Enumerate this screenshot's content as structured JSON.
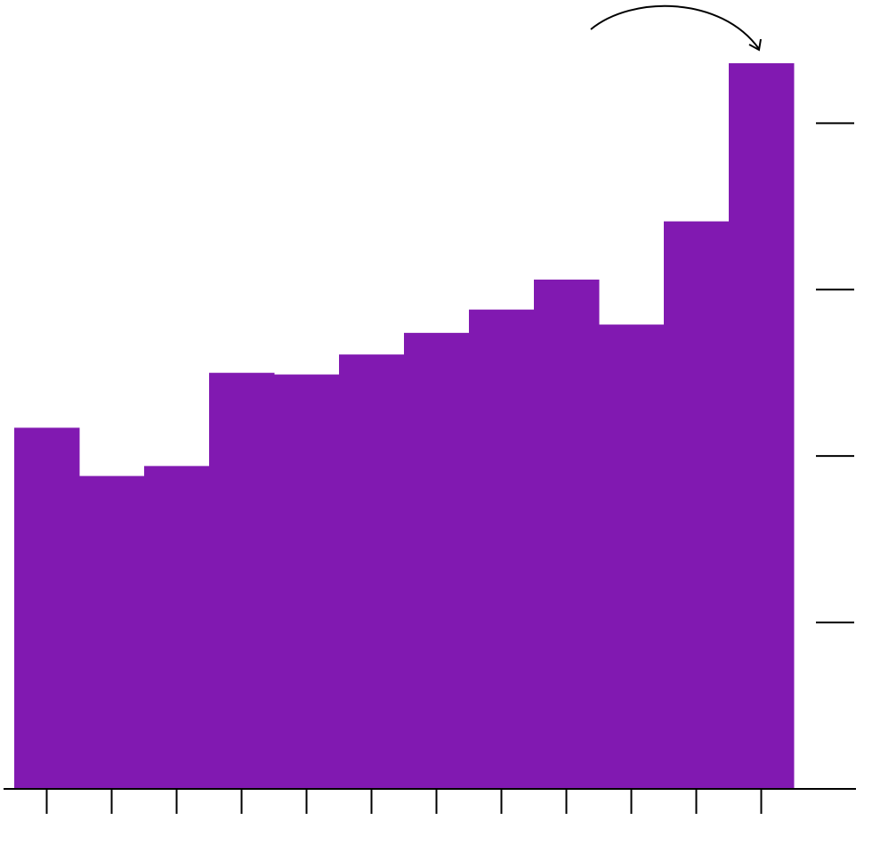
{
  "chart_data": {
    "type": "bar",
    "categories": [
      null,
      null,
      null,
      null,
      null,
      null,
      null,
      null,
      null,
      null,
      null,
      null
    ],
    "values": [
      2.17,
      1.88,
      1.94,
      2.5,
      2.49,
      2.61,
      2.74,
      2.88,
      3.06,
      2.79,
      3.41,
      4.36
    ],
    "color": "#8119b1",
    "ylim": [
      0,
      4.74
    ],
    "yticks": [
      1,
      2,
      3,
      4
    ]
  }
}
